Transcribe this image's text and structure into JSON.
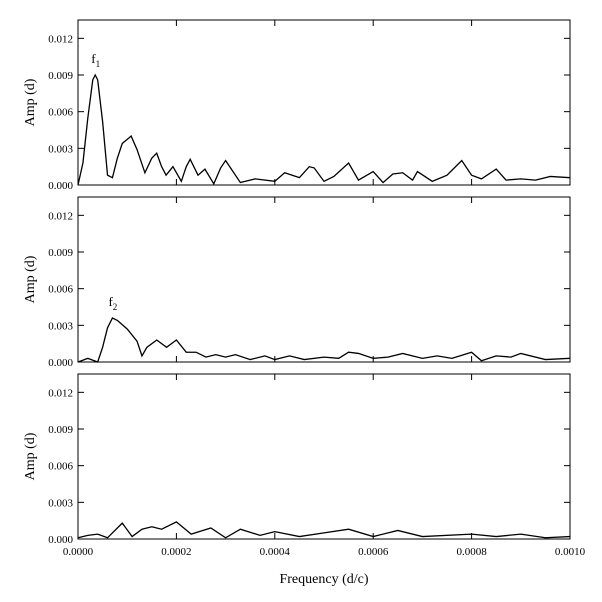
{
  "chart_data": [
    {
      "type": "line",
      "ylabel": "Amp (d)",
      "color": "#000000",
      "annotation": {
        "text": "f",
        "subscript": "1"
      },
      "x": [
        0,
        1e-05,
        2e-05,
        3e-05,
        3.5e-05,
        4e-05,
        5e-05,
        6e-05,
        7e-05,
        8e-05,
        9e-05,
        0.000108,
        0.00012,
        0.000136,
        0.00015,
        0.00016,
        0.00017,
        0.000179,
        0.000193,
        0.00021,
        0.00022,
        0.000228,
        0.000244,
        0.000258,
        0.000276,
        0.00029,
        0.0003,
        0.00031,
        0.00033,
        0.00036,
        0.0004,
        0.00042,
        0.00045,
        0.00047,
        0.00048,
        0.0005,
        0.00052,
        0.00055,
        0.00057,
        0.0006,
        0.00062,
        0.00064,
        0.00066,
        0.00068,
        0.00069,
        0.00072,
        0.00075,
        0.00078,
        0.0008,
        0.00082,
        0.00085,
        0.00087,
        0.0009,
        0.00093,
        0.00096,
        0.001
      ],
      "values": [
        0,
        0.0018,
        0.0055,
        0.0086,
        0.009,
        0.0086,
        0.0052,
        0.0008,
        0.0006,
        0.0022,
        0.0034,
        0.004,
        0.0029,
        0.001,
        0.0022,
        0.0026,
        0.0015,
        0.0008,
        0.0015,
        0.0003,
        0.0015,
        0.0021,
        0.0008,
        0.0013,
        0.0001,
        0.0014,
        0.002,
        0.0014,
        0.0002,
        0.0005,
        0.0003,
        0.001,
        0.0006,
        0.0015,
        0.0014,
        0.0003,
        0.0007,
        0.0018,
        0.0004,
        0.0011,
        0.0002,
        0.0009,
        0.001,
        0.0004,
        0.0011,
        0.0003,
        0.0008,
        0.002,
        0.0008,
        0.0005,
        0.0013,
        0.0004,
        0.0005,
        0.0004,
        0.0007,
        0.0006
      ],
      "xlim": [
        0,
        0.001
      ],
      "xticks": [
        0,
        0.0002,
        0.0004,
        0.0006,
        0.0008,
        0.001
      ],
      "ylim": [
        0,
        0.0135
      ],
      "yticks": [
        {
          "value": 0,
          "label": "0.000"
        },
        {
          "value": 0.003,
          "label": "0.003"
        },
        {
          "value": 0.006,
          "label": "0.006"
        },
        {
          "value": 0.009,
          "label": "0.009"
        },
        {
          "value": 0.012,
          "label": "0.012"
        }
      ]
    },
    {
      "type": "line",
      "ylabel": "Amp (d)",
      "color": "#000000",
      "annotation": {
        "text": "f",
        "subscript": "2"
      },
      "x": [
        0,
        2e-05,
        4e-05,
        5e-05,
        6e-05,
        7e-05,
        8e-05,
        0.0001,
        0.00012,
        0.00013,
        0.00014,
        0.00016,
        0.00018,
        0.0002,
        0.00022,
        0.00024,
        0.00026,
        0.00028,
        0.0003,
        0.00032,
        0.00035,
        0.00038,
        0.0004,
        0.00043,
        0.00046,
        0.0005,
        0.00053,
        0.00055,
        0.00057,
        0.0006,
        0.00063,
        0.00066,
        0.0007,
        0.00073,
        0.00076,
        0.0008,
        0.00082,
        0.00085,
        0.00088,
        0.0009,
        0.00095,
        0.001
      ],
      "values": [
        0,
        0.0003,
        0,
        0.0012,
        0.0028,
        0.0036,
        0.0034,
        0.0027,
        0.0017,
        0.0005,
        0.0012,
        0.0018,
        0.0012,
        0.0018,
        0.0008,
        0.0008,
        0.0004,
        0.0006,
        0.0004,
        0.0006,
        0.0002,
        0.0005,
        0.0002,
        0.0005,
        0.0002,
        0.0004,
        0.0003,
        0.0008,
        0.0007,
        0.0003,
        0.0004,
        0.0007,
        0.0003,
        0.0005,
        0.0003,
        0.0008,
        0.0001,
        0.0005,
        0.0004,
        0.0007,
        0.0002,
        0.0003
      ],
      "xlim": [
        0,
        0.001
      ],
      "xticks": [
        0,
        0.0002,
        0.0004,
        0.0006,
        0.0008,
        0.001
      ],
      "ylim": [
        0,
        0.0135
      ],
      "yticks": [
        {
          "value": 0,
          "label": "0.000"
        },
        {
          "value": 0.003,
          "label": "0.003"
        },
        {
          "value": 0.006,
          "label": "0.006"
        },
        {
          "value": 0.009,
          "label": "0.009"
        },
        {
          "value": 0.012,
          "label": "0.012"
        }
      ]
    },
    {
      "type": "line",
      "ylabel": "Amp (d)",
      "xlabel": "Frequency (d/c)",
      "color": "#000000",
      "x": [
        0,
        2e-05,
        4e-05,
        6e-05,
        9e-05,
        0.00011,
        0.00013,
        0.00015,
        0.00017,
        0.0002,
        0.00023,
        0.00027,
        0.0003,
        0.00033,
        0.00037,
        0.0004,
        0.00045,
        0.0005,
        0.00055,
        0.0006,
        0.00065,
        0.0007,
        0.0008,
        0.00085,
        0.0009,
        0.00095,
        0.001
      ],
      "values": [
        0.0001,
        0.0003,
        0.0004,
        0.0001,
        0.0013,
        0.0002,
        0.0008,
        0.001,
        0.0008,
        0.0014,
        0.0004,
        0.0009,
        0.0001,
        0.0008,
        0.0003,
        0.0006,
        0.0002,
        0.0005,
        0.0008,
        0.0002,
        0.0007,
        0.0002,
        0.0004,
        0.0002,
        0.0004,
        0.0001,
        0.0002
      ],
      "xlim": [
        0,
        0.001
      ],
      "xticks": [
        {
          "value": 0,
          "label": "0.0000"
        },
        {
          "value": 0.0002,
          "label": "0.0002"
        },
        {
          "value": 0.0004,
          "label": "0.0004"
        },
        {
          "value": 0.0006,
          "label": "0.0006"
        },
        {
          "value": 0.0008,
          "label": "0.0008"
        },
        {
          "value": 0.001,
          "label": "0.0010"
        }
      ],
      "ylim": [
        0,
        0.0135
      ],
      "yticks": [
        {
          "value": 0,
          "label": "0.000"
        },
        {
          "value": 0.003,
          "label": "0.003"
        },
        {
          "value": 0.006,
          "label": "0.006"
        },
        {
          "value": 0.009,
          "label": "0.009"
        },
        {
          "value": 0.012,
          "label": "0.012"
        }
      ]
    }
  ]
}
